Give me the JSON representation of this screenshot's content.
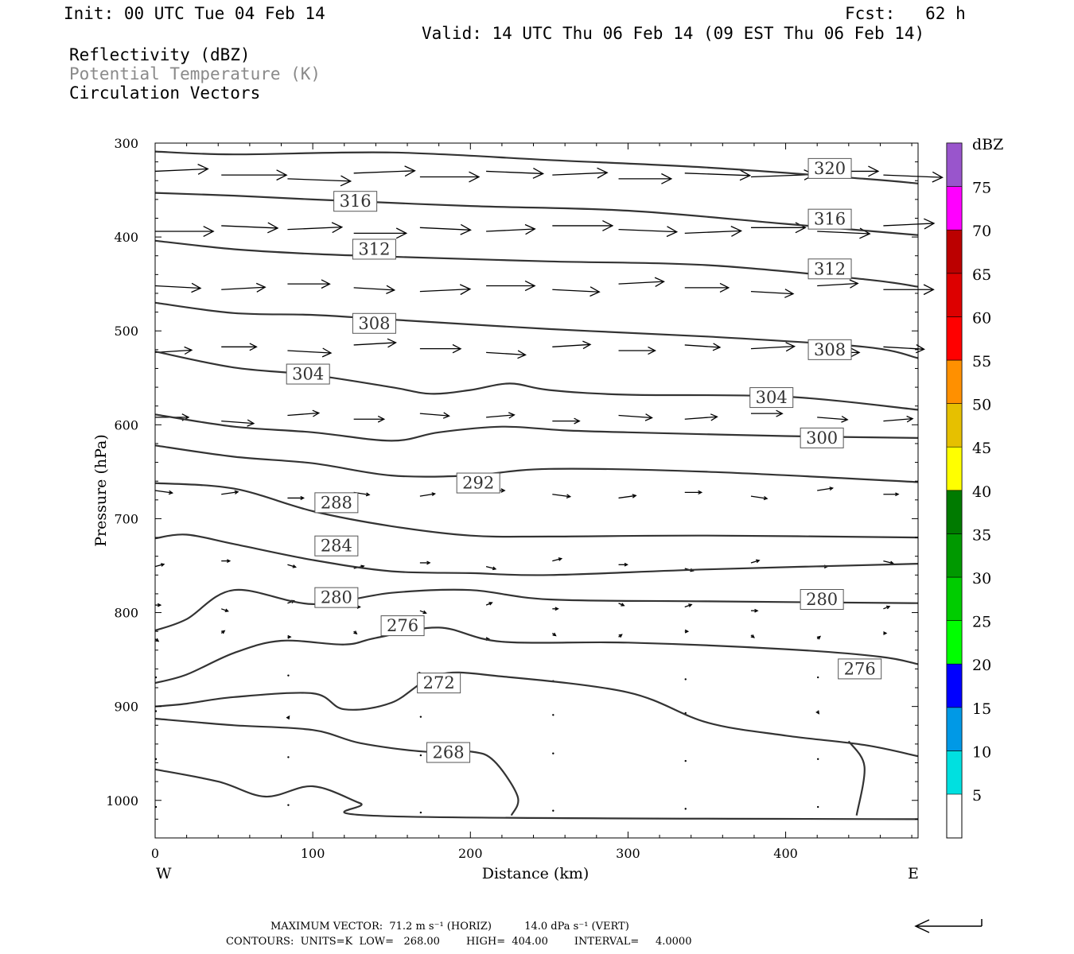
{
  "header": {
    "init": "Init: 00 UTC Tue 04 Feb 14",
    "fcst": "Fcst:   62 h",
    "valid": "Valid: 14 UTC Thu 06 Feb 14 (09 EST Thu 06 Feb 14)",
    "fields": [
      {
        "label": "Reflectivity (dBZ)",
        "color": "#000000"
      },
      {
        "label": "Potential Temperature (K)",
        "color": "#8a8a8a"
      },
      {
        "label": "Circulation Vectors",
        "color": "#000000"
      }
    ]
  },
  "footer": {
    "max_vector_line": "MAXIMUM VECTOR:  71.2 m s⁻¹ (HORIZ)          14.0 dPa s⁻¹ (VERT)",
    "contours_line": "CONTOURS:  UNITS=K  LOW=   268.00        HIGH=  404.00        INTERVAL=     4.0000"
  },
  "chart_data": {
    "type": "contour",
    "xlabel": "Distance (km)",
    "ylabel": "Pressure (hPa)",
    "xlim": [
      0,
      484
    ],
    "ylim": [
      1040,
      300
    ],
    "y_scale": "linear (inverted)",
    "xticks": [
      0,
      100,
      200,
      300,
      400
    ],
    "yticks": [
      300,
      400,
      500,
      600,
      700,
      800,
      900,
      1000
    ],
    "left_end_label": "W",
    "right_end_label": "E",
    "colorbar": {
      "title": "dBZ",
      "levels": [
        5,
        10,
        15,
        20,
        25,
        30,
        35,
        40,
        45,
        50,
        55,
        60,
        65,
        70,
        75
      ],
      "colors": [
        "#00e0e0",
        "#0099e6",
        "#0000ff",
        "#00ff00",
        "#00cc00",
        "#009900",
        "#007a00",
        "#ffff00",
        "#e6c000",
        "#ff9000",
        "#ff0000",
        "#dd0000",
        "#bb0000",
        "#ff00ff",
        "#9955cc"
      ]
    },
    "reflectivity_shaded": false,
    "contour_color": "#333333",
    "contours": [
      {
        "theta": 320,
        "points": [
          [
            0,
            309
          ],
          [
            50,
            312
          ],
          [
            150,
            310
          ],
          [
            250,
            318
          ],
          [
            350,
            326
          ],
          [
            450,
            338
          ],
          [
            484,
            343
          ]
        ],
        "labels": [
          [
            428,
            327
          ]
        ]
      },
      {
        "theta": 316,
        "points": [
          [
            0,
            353
          ],
          [
            50,
            356
          ],
          [
            100,
            360
          ],
          [
            200,
            367
          ],
          [
            300,
            372
          ],
          [
            400,
            386
          ],
          [
            484,
            398
          ]
        ],
        "labels": [
          [
            127,
            362
          ],
          [
            428,
            381
          ]
        ]
      },
      {
        "theta": 312,
        "points": [
          [
            0,
            404
          ],
          [
            50,
            413
          ],
          [
            100,
            418
          ],
          [
            150,
            421
          ],
          [
            250,
            426
          ],
          [
            350,
            430
          ],
          [
            450,
            445
          ],
          [
            484,
            453
          ]
        ],
        "labels": [
          [
            139,
            413
          ],
          [
            428,
            434
          ]
        ]
      },
      {
        "theta": 308,
        "points": [
          [
            0,
            470
          ],
          [
            50,
            481
          ],
          [
            100,
            483
          ],
          [
            150,
            488
          ],
          [
            250,
            498
          ],
          [
            350,
            506
          ],
          [
            450,
            517
          ],
          [
            484,
            529
          ]
        ],
        "labels": [
          [
            139,
            492
          ],
          [
            428,
            520
          ]
        ]
      },
      {
        "theta": 304,
        "points": [
          [
            0,
            522
          ],
          [
            50,
            539
          ],
          [
            100,
            547
          ],
          [
            150,
            560
          ],
          [
            175,
            567
          ],
          [
            200,
            563
          ],
          [
            225,
            556
          ],
          [
            250,
            563
          ],
          [
            300,
            568
          ],
          [
            400,
            570
          ],
          [
            484,
            584
          ]
        ],
        "labels": [
          [
            97,
            546
          ],
          [
            391,
            571
          ]
        ]
      },
      {
        "theta": 300,
        "points": [
          [
            0,
            589
          ],
          [
            50,
            602
          ],
          [
            100,
            608
          ],
          [
            150,
            617
          ],
          [
            180,
            608
          ],
          [
            220,
            602
          ],
          [
            260,
            606
          ],
          [
            300,
            608
          ],
          [
            400,
            612
          ],
          [
            484,
            614
          ]
        ],
        "labels": [
          [
            423,
            614
          ]
        ]
      },
      {
        "theta": 296,
        "points": [
          [
            0,
            622
          ],
          [
            50,
            634
          ],
          [
            100,
            641
          ],
          [
            150,
            654
          ],
          [
            200,
            654
          ],
          [
            250,
            647
          ],
          [
            350,
            650
          ],
          [
            484,
            661
          ]
        ]
      },
      {
        "theta": 292,
        "points": [
          [
            0,
            662
          ],
          [
            50,
            668
          ],
          [
            100,
            692
          ],
          [
            150,
            708
          ],
          [
            200,
            718
          ],
          [
            250,
            719
          ],
          [
            350,
            718
          ],
          [
            484,
            720
          ]
        ],
        "labels": [
          [
            205,
            662
          ]
        ]
      },
      {
        "theta": 288,
        "points": [
          [
            0,
            721
          ],
          [
            20,
            717
          ],
          [
            50,
            727
          ],
          [
            100,
            744
          ],
          [
            150,
            756
          ],
          [
            200,
            758
          ],
          [
            250,
            760
          ],
          [
            350,
            754
          ],
          [
            484,
            748
          ]
        ],
        "labels": [
          [
            115,
            683
          ]
        ]
      },
      {
        "theta": 284,
        "points": [
          [
            0,
            819
          ],
          [
            20,
            807
          ],
          [
            50,
            776
          ],
          [
            100,
            791
          ],
          [
            150,
            779
          ],
          [
            200,
            776
          ],
          [
            250,
            786
          ],
          [
            350,
            788
          ],
          [
            484,
            790
          ]
        ],
        "labels": [
          [
            115,
            729
          ]
        ]
      },
      {
        "theta": 280,
        "points": [
          [
            0,
            875
          ],
          [
            20,
            866
          ],
          [
            50,
            843
          ],
          [
            80,
            830
          ],
          [
            120,
            834
          ],
          [
            140,
            827
          ],
          [
            180,
            816
          ],
          [
            220,
            831
          ],
          [
            300,
            832
          ],
          [
            400,
            839
          ],
          [
            460,
            847
          ],
          [
            484,
            855
          ]
        ],
        "labels": [
          [
            115,
            784
          ],
          [
            423,
            786
          ]
        ]
      },
      {
        "theta": 276,
        "points": [
          [
            0,
            900
          ],
          [
            20,
            897
          ],
          [
            50,
            890
          ],
          [
            100,
            886
          ],
          [
            120,
            903
          ],
          [
            150,
            896
          ],
          [
            180,
            866
          ],
          [
            220,
            868
          ],
          [
            300,
            885
          ],
          [
            350,
            917
          ],
          [
            400,
            931
          ],
          [
            450,
            941
          ],
          [
            484,
            953
          ]
        ],
        "labels": [
          [
            157,
            814
          ],
          [
            447,
            860
          ]
        ]
      },
      {
        "theta": 272,
        "points": [
          [
            0,
            913
          ],
          [
            50,
            920
          ],
          [
            100,
            925
          ],
          [
            130,
            939
          ],
          [
            170,
            948
          ],
          [
            200,
            948
          ],
          [
            215,
            958
          ],
          [
            230,
            996
          ],
          [
            226,
            1016
          ]
        ],
        "labels": [
          [
            180,
            875
          ]
        ]
      },
      {
        "theta": 268,
        "points": [
          [
            0,
            967
          ],
          [
            40,
            980
          ],
          [
            70,
            996
          ],
          [
            100,
            985
          ],
          [
            130,
            1003
          ],
          [
            150,
            1017
          ],
          [
            484,
            1020
          ]
        ],
        "labels": [
          [
            186,
            949
          ]
        ]
      },
      {
        "theta": 272,
        "points": [
          [
            440,
            937
          ],
          [
            450,
            964
          ],
          [
            445,
            1016
          ]
        ]
      }
    ],
    "circulation_vectors": "wind arrows overlaid on the section, strongest westerly flow near 300–450 hPa and weak near the surface",
    "reference_vector_note": "reference arrow shown at bottom right"
  }
}
